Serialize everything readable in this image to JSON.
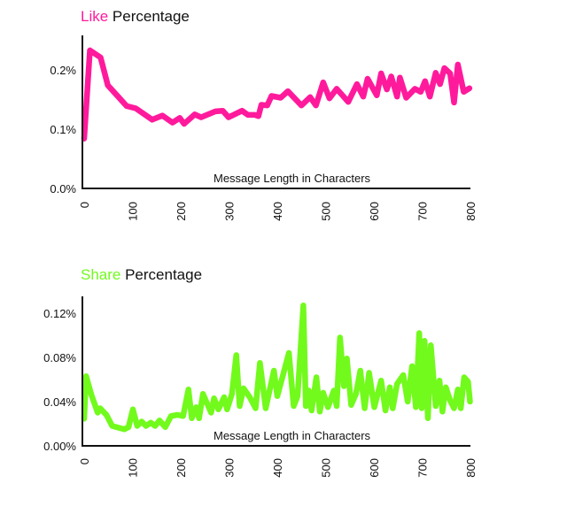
{
  "chart_data": [
    {
      "type": "line",
      "title_highlight": "Like",
      "title_rest": " Percentage",
      "color": "#ff1a9c",
      "xlabel": "Message Length in Characters",
      "ylabel": "",
      "xlim": [
        0,
        800
      ],
      "ylim": [
        0,
        0.25
      ],
      "xticks": [
        0,
        100,
        200,
        300,
        400,
        500,
        600,
        700,
        800
      ],
      "yticks": [
        {
          "value": 0.0,
          "label": "0.0%"
        },
        {
          "value": 0.1,
          "label": "0.1%"
        },
        {
          "value": 0.2,
          "label": "0.2%"
        }
      ],
      "grid": false,
      "x": [
        0,
        12,
        34,
        49,
        88,
        107,
        141,
        162,
        183,
        198,
        207,
        229,
        242,
        272,
        287,
        299,
        327,
        339,
        354,
        361,
        367,
        379,
        388,
        407,
        422,
        450,
        468,
        480,
        495,
        508,
        523,
        547,
        565,
        578,
        587,
        606,
        615,
        627,
        636,
        648,
        654,
        667,
        685,
        697,
        706,
        716,
        728,
        737,
        746,
        758,
        766,
        774,
        786,
        798
      ],
      "y": [
        0.084,
        0.233,
        0.221,
        0.174,
        0.139,
        0.135,
        0.116,
        0.123,
        0.111,
        0.119,
        0.109,
        0.125,
        0.12,
        0.13,
        0.131,
        0.12,
        0.131,
        0.124,
        0.124,
        0.122,
        0.141,
        0.14,
        0.156,
        0.153,
        0.164,
        0.14,
        0.154,
        0.14,
        0.179,
        0.152,
        0.168,
        0.146,
        0.176,
        0.155,
        0.185,
        0.157,
        0.194,
        0.167,
        0.189,
        0.155,
        0.187,
        0.153,
        0.168,
        0.163,
        0.181,
        0.155,
        0.195,
        0.176,
        0.203,
        0.194,
        0.145,
        0.209,
        0.163,
        0.169
      ]
    },
    {
      "type": "line",
      "title_highlight": "Share",
      "title_rest": " Percentage",
      "color": "#72fa1c",
      "xlabel": "Message Length in Characters",
      "ylabel": "",
      "xlim": [
        0,
        800
      ],
      "ylim": [
        0,
        0.135
      ],
      "xticks": [
        0,
        100,
        200,
        300,
        400,
        500,
        600,
        700,
        800
      ],
      "yticks": [
        {
          "value": 0.0,
          "label": "0.00%"
        },
        {
          "value": 0.04,
          "label": "0.04%"
        },
        {
          "value": 0.08,
          "label": "0.08%"
        },
        {
          "value": 0.12,
          "label": "0.12%"
        }
      ],
      "grid": false,
      "x": [
        0,
        4,
        15,
        28,
        33,
        46,
        58,
        83,
        92,
        101,
        110,
        119,
        128,
        138,
        147,
        156,
        168,
        180,
        193,
        205,
        216,
        223,
        232,
        238,
        246,
        263,
        269,
        278,
        290,
        296,
        306,
        315,
        322,
        330,
        343,
        355,
        364,
        376,
        393,
        400,
        413,
        424,
        434,
        442,
        454,
        459,
        465,
        471,
        481,
        488,
        495,
        505,
        517,
        523,
        530,
        538,
        544,
        553,
        563,
        572,
        581,
        590,
        601,
        615,
        624,
        633,
        639,
        648,
        661,
        670,
        679,
        687,
        694,
        699,
        705,
        712,
        718,
        728,
        736,
        742,
        749,
        758,
        766,
        774,
        780,
        787,
        795,
        799
      ],
      "y": [
        0.0245,
        0.063,
        0.046,
        0.03,
        0.034,
        0.028,
        0.018,
        0.015,
        0.017,
        0.033,
        0.018,
        0.022,
        0.018,
        0.021,
        0.018,
        0.023,
        0.017,
        0.027,
        0.028,
        0.027,
        0.051,
        0.025,
        0.035,
        0.025,
        0.047,
        0.03,
        0.043,
        0.033,
        0.044,
        0.033,
        0.047,
        0.082,
        0.036,
        0.052,
        0.044,
        0.034,
        0.075,
        0.034,
        0.068,
        0.045,
        0.066,
        0.084,
        0.036,
        0.045,
        0.127,
        0.036,
        0.05,
        0.032,
        0.062,
        0.031,
        0.048,
        0.035,
        0.05,
        0.036,
        0.098,
        0.054,
        0.079,
        0.037,
        0.047,
        0.068,
        0.034,
        0.066,
        0.035,
        0.059,
        0.032,
        0.053,
        0.034,
        0.056,
        0.064,
        0.04,
        0.072,
        0.035,
        0.102,
        0.034,
        0.095,
        0.025,
        0.091,
        0.036,
        0.059,
        0.031,
        0.053,
        0.041,
        0.034,
        0.051,
        0.034,
        0.062,
        0.058,
        0.04
      ]
    }
  ]
}
